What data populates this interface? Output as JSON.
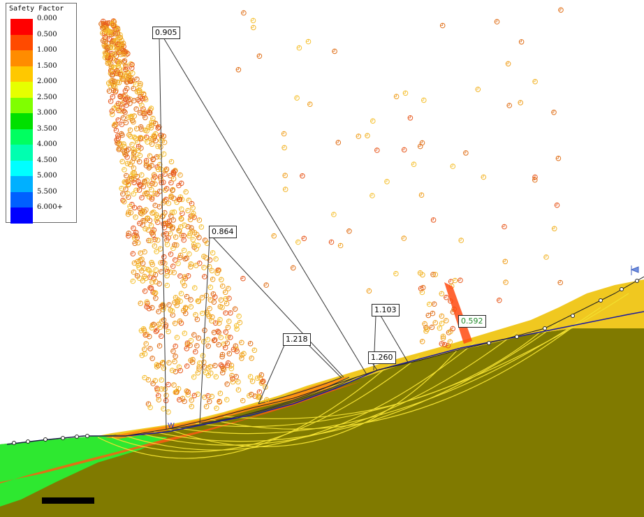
{
  "legend": {
    "title": "Safety Factor",
    "entries": [
      {
        "label": "0.000",
        "color": "#ff0000"
      },
      {
        "label": "0.500",
        "color": "#ff4a00"
      },
      {
        "label": "1.000",
        "color": "#ff8c00"
      },
      {
        "label": "1.500",
        "color": "#ffc800"
      },
      {
        "label": "2.000",
        "color": "#e6ff00"
      },
      {
        "label": "2.500",
        "color": "#80ff00"
      },
      {
        "label": "3.000",
        "color": "#00e000"
      },
      {
        "label": "3.500",
        "color": "#00ff60"
      },
      {
        "label": "4.000",
        "color": "#00ffb0"
      },
      {
        "label": "4.500",
        "color": "#00ffff"
      },
      {
        "label": "5.000",
        "color": "#00b0ff"
      },
      {
        "label": "5.500",
        "color": "#0060ff"
      },
      {
        "label": "6.000+",
        "color": "#0000ff"
      }
    ]
  },
  "surfaces": [
    {
      "label": "0.905",
      "critical": false
    },
    {
      "label": "0.864",
      "critical": false
    },
    {
      "label": "1.218",
      "critical": false
    },
    {
      "label": "1.103",
      "critical": false
    },
    {
      "label": "1.260",
      "critical": false
    },
    {
      "label": "0.592",
      "critical": true
    }
  ],
  "colors": {
    "ground": "#807a00",
    "slope_fill": "#f0c820",
    "water_table": "#1a1aa0",
    "critical_label": "#1f8a2a"
  },
  "markers": {
    "water_symbol": "W"
  }
}
